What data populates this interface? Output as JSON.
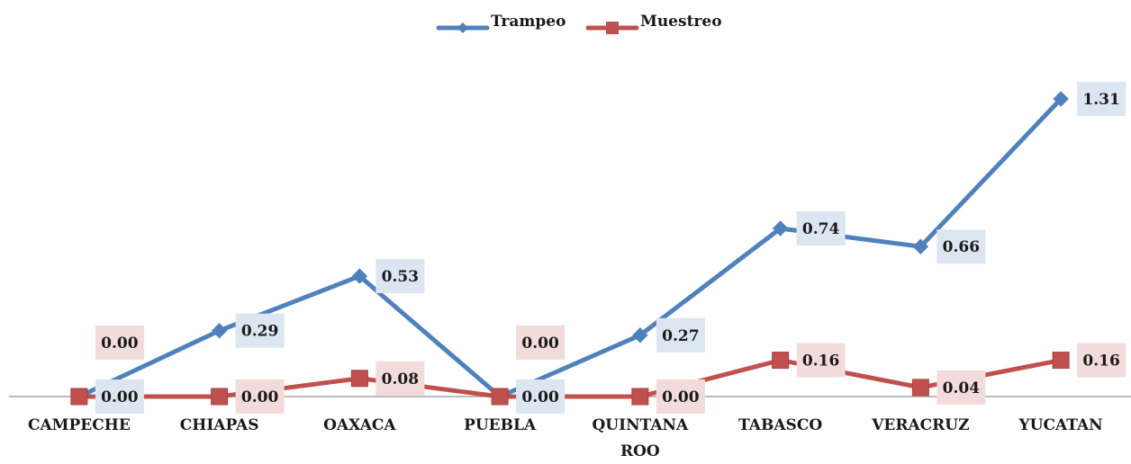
{
  "chart_data": {
    "type": "line",
    "categories": [
      "CAMPECHE",
      "CHIAPAS",
      "OAXACA",
      "PUEBLA",
      "QUINTANA ROO",
      "TABASCO",
      "VERACRUZ",
      "YUCATAN"
    ],
    "series": [
      {
        "name": "Trampeo",
        "color": "#4F81BD",
        "label_bg": "#DCE6F1",
        "marker": "diamond",
        "values": [
          0.0,
          0.29,
          0.53,
          0.0,
          0.27,
          0.74,
          0.66,
          1.31
        ],
        "labels": [
          "0.00",
          "0.29",
          "0.53",
          "0.00",
          "0.27",
          "0.74",
          "0.66",
          "1.31"
        ]
      },
      {
        "name": "Muestreo",
        "color": "#C0504D",
        "label_bg": "#F2DCDB",
        "marker": "square",
        "values": [
          0.0,
          0.0,
          0.08,
          0.0,
          0.0,
          0.16,
          0.04,
          0.16
        ],
        "labels": [
          "0.00",
          "0.00",
          "0.08",
          "0.00",
          "0.00",
          "0.16",
          "0.04",
          "0.16"
        ]
      }
    ],
    "ylim": [
      0,
      1.5
    ],
    "grid": false,
    "legend_position": "top-center",
    "axis_color": "#A6A6A6"
  }
}
